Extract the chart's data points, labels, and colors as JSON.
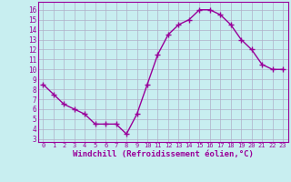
{
  "x": [
    0,
    1,
    2,
    3,
    4,
    5,
    6,
    7,
    8,
    9,
    10,
    11,
    12,
    13,
    14,
    15,
    16,
    17,
    18,
    19,
    20,
    21,
    22,
    23
  ],
  "y": [
    8.5,
    7.5,
    6.5,
    6.0,
    5.5,
    4.5,
    4.5,
    4.5,
    3.5,
    5.5,
    8.5,
    11.5,
    13.5,
    14.5,
    15.0,
    16.0,
    16.0,
    15.5,
    14.5,
    13.0,
    12.0,
    10.5,
    10.0,
    10.0
  ],
  "line_color": "#990099",
  "marker": "+",
  "marker_size": 4,
  "linewidth": 1.0,
  "xlabel": "Windchill (Refroidissement éolien,°C)",
  "xlabel_fontsize": 6.5,
  "ylabel_ticks": [
    3,
    4,
    5,
    6,
    7,
    8,
    9,
    10,
    11,
    12,
    13,
    14,
    15,
    16
  ],
  "ylim": [
    2.7,
    16.8
  ],
  "xlim": [
    -0.5,
    23.5
  ],
  "xtick_labels": [
    "0",
    "1",
    "2",
    "3",
    "4",
    "5",
    "6",
    "7",
    "8",
    "9",
    "10",
    "11",
    "12",
    "13",
    "14",
    "15",
    "16",
    "17",
    "18",
    "19",
    "20",
    "21",
    "22",
    "23"
  ],
  "background_color": "#c8eef0",
  "grid_color": "#b0b0c8",
  "tick_color": "#990099",
  "label_color": "#990099"
}
